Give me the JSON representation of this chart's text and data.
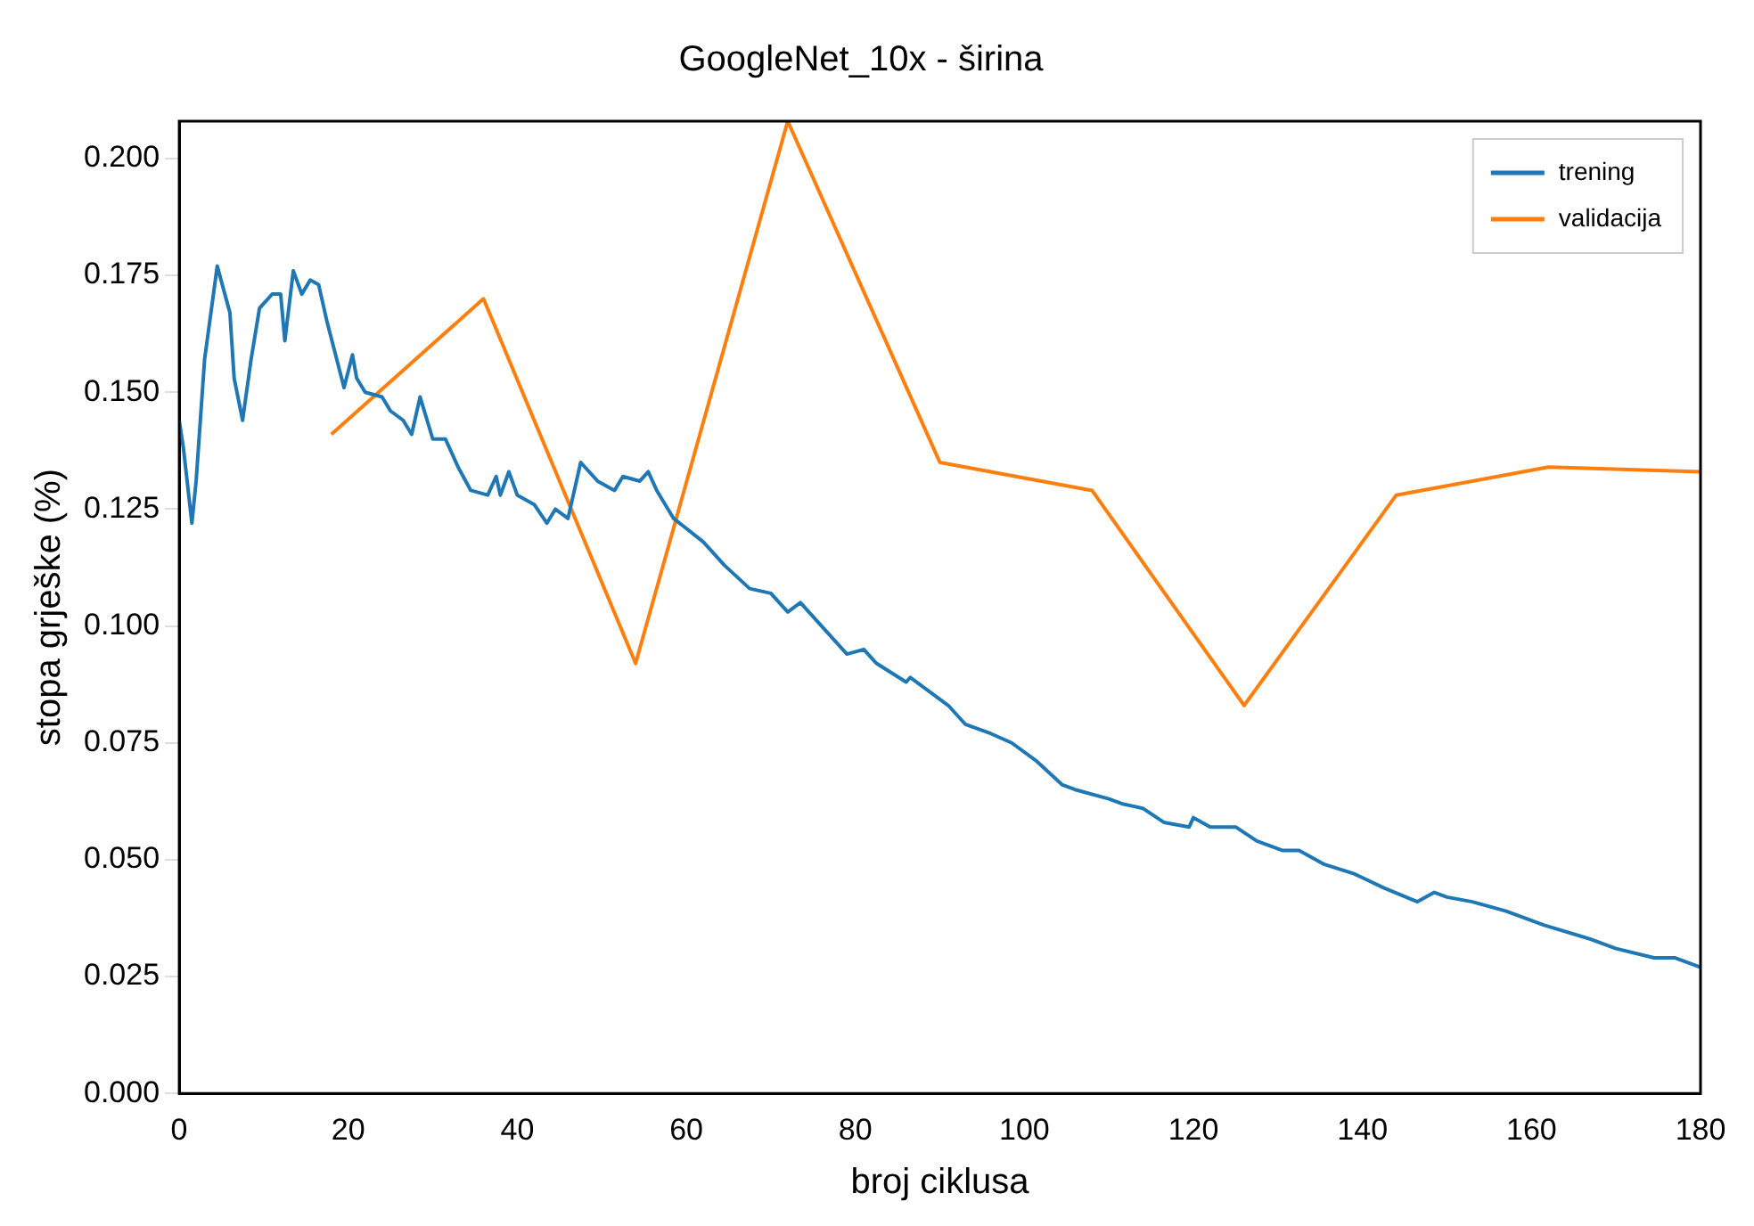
{
  "chart_data": {
    "type": "line",
    "title": "GoogleNet_10x - širina",
    "xlabel": "broj ciklusa",
    "ylabel": "stopa grješke (%)",
    "xlim": [
      0,
      180
    ],
    "xticks": [
      0,
      20,
      40,
      60,
      80,
      100,
      120,
      140,
      160,
      180
    ],
    "ylim": [
      0,
      0.208
    ],
    "yticks": [
      {
        "value": 0,
        "label": "0.000"
      },
      {
        "value": 0.025,
        "label": "0.025"
      },
      {
        "value": 0.05,
        "label": "0.050"
      },
      {
        "value": 0.075,
        "label": "0.075"
      },
      {
        "value": 0.1,
        "label": "0.100"
      },
      {
        "value": 0.125,
        "label": "0.125"
      },
      {
        "value": 0.15,
        "label": "0.150"
      },
      {
        "value": 0.175,
        "label": "0.175"
      },
      {
        "value": 0.2,
        "label": "0.200"
      }
    ],
    "grid": false,
    "legend": "top right",
    "marker": "none",
    "line_style": "solid",
    "series": [
      {
        "name": "trening",
        "color": "#1f77b4",
        "x": [
          0,
          0.5,
          1.5,
          2,
          3,
          4.5,
          6,
          6.5,
          7.5,
          8.5,
          9.5,
          11,
          12,
          12.5,
          13.5,
          14.5,
          15.5,
          16.5,
          17.5,
          19.5,
          20.5,
          21,
          22,
          24,
          25,
          26.5,
          27.5,
          28.5,
          30,
          31.5,
          33,
          34.5,
          36.5,
          37.5,
          38,
          39,
          40,
          42,
          43.5,
          44.5,
          46,
          47.5,
          49.5,
          51.5,
          52.5,
          54.5,
          55.5,
          56.5,
          58.5,
          62,
          64.5,
          67.5,
          70,
          72,
          73.5,
          75.5,
          79,
          81,
          82.5,
          86,
          86.5,
          88,
          91,
          93,
          96,
          98.5,
          101.5,
          104.5,
          106,
          110,
          111.5,
          114,
          116.5,
          119.5,
          120,
          122,
          123.5,
          125,
          127.5,
          130.5,
          132.5,
          135.5,
          139,
          142.5,
          146.5,
          148.5,
          150,
          153,
          157,
          160,
          161.5,
          167,
          170,
          174.5,
          177,
          180
        ],
        "values": [
          0.144,
          0.138,
          0.122,
          0.131,
          0.157,
          0.177,
          0.167,
          0.153,
          0.144,
          0.157,
          0.168,
          0.171,
          0.171,
          0.161,
          0.176,
          0.171,
          0.174,
          0.173,
          0.165,
          0.151,
          0.158,
          0.153,
          0.15,
          0.149,
          0.146,
          0.144,
          0.141,
          0.149,
          0.14,
          0.14,
          0.134,
          0.129,
          0.128,
          0.132,
          0.128,
          0.133,
          0.128,
          0.126,
          0.122,
          0.125,
          0.123,
          0.135,
          0.131,
          0.129,
          0.132,
          0.131,
          0.133,
          0.129,
          0.123,
          0.118,
          0.113,
          0.108,
          0.107,
          0.103,
          0.105,
          0.101,
          0.094,
          0.095,
          0.092,
          0.088,
          0.089,
          0.087,
          0.083,
          0.079,
          0.077,
          0.075,
          0.071,
          0.066,
          0.065,
          0.063,
          0.062,
          0.061,
          0.058,
          0.057,
          0.059,
          0.057,
          0.057,
          0.057,
          0.054,
          0.052,
          0.052,
          0.049,
          0.047,
          0.044,
          0.041,
          0.043,
          0.042,
          0.041,
          0.039,
          0.037,
          0.036,
          0.033,
          0.031,
          0.029,
          0.029,
          0.027
        ]
      },
      {
        "name": "validacija",
        "color": "#ff7f0e",
        "x": [
          18,
          36,
          54,
          72,
          90,
          108,
          126,
          144,
          162,
          180
        ],
        "values": [
          0.141,
          0.17,
          0.092,
          0.208,
          0.135,
          0.129,
          0.083,
          0.128,
          0.134,
          0.133
        ]
      }
    ]
  }
}
